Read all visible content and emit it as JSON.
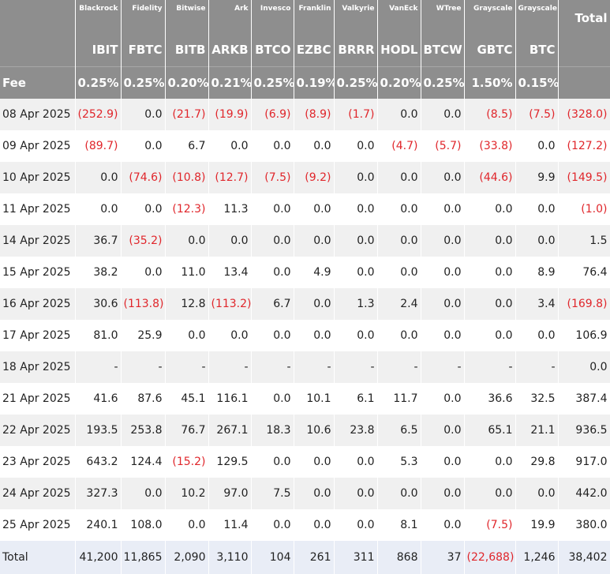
{
  "header": {
    "issuers": [
      "Blackrock",
      "Fidelity",
      "Bitwise",
      "Ark",
      "Invesco",
      "Franklin",
      "Valkyrie",
      "VanEck",
      "WTree",
      "Grayscale",
      "Grayscale"
    ],
    "total_label": "Total",
    "tickers": [
      "IBIT",
      "FBTC",
      "BITB",
      "ARKB",
      "BTCO",
      "EZBC",
      "BRRR",
      "HODL",
      "BTCW",
      "GBTC",
      "BTC"
    ]
  },
  "fee": {
    "label": "Fee",
    "values": [
      "0.25%",
      "0.25%",
      "0.20%",
      "0.21%",
      "0.25%",
      "0.19%",
      "0.25%",
      "0.20%",
      "0.25%",
      "1.50%",
      "0.15%"
    ]
  },
  "rows": [
    {
      "label": "08 Apr 2025",
      "values": [
        "(252.9)",
        "0.0",
        "(21.7)",
        "(19.9)",
        "(6.9)",
        "(8.9)",
        "(1.7)",
        "0.0",
        "0.0",
        "(8.5)",
        "(7.5)",
        "(328.0)"
      ]
    },
    {
      "label": "09 Apr 2025",
      "values": [
        "(89.7)",
        "0.0",
        "6.7",
        "0.0",
        "0.0",
        "0.0",
        "0.0",
        "(4.7)",
        "(5.7)",
        "(33.8)",
        "0.0",
        "(127.2)"
      ]
    },
    {
      "label": "10 Apr 2025",
      "values": [
        "0.0",
        "(74.6)",
        "(10.8)",
        "(12.7)",
        "(7.5)",
        "(9.2)",
        "0.0",
        "0.0",
        "0.0",
        "(44.6)",
        "9.9",
        "(149.5)"
      ]
    },
    {
      "label": "11 Apr 2025",
      "values": [
        "0.0",
        "0.0",
        "(12.3)",
        "11.3",
        "0.0",
        "0.0",
        "0.0",
        "0.0",
        "0.0",
        "0.0",
        "0.0",
        "(1.0)"
      ]
    },
    {
      "label": "14 Apr 2025",
      "values": [
        "36.7",
        "(35.2)",
        "0.0",
        "0.0",
        "0.0",
        "0.0",
        "0.0",
        "0.0",
        "0.0",
        "0.0",
        "0.0",
        "1.5"
      ]
    },
    {
      "label": "15 Apr 2025",
      "values": [
        "38.2",
        "0.0",
        "11.0",
        "13.4",
        "0.0",
        "4.9",
        "0.0",
        "0.0",
        "0.0",
        "0.0",
        "8.9",
        "76.4"
      ]
    },
    {
      "label": "16 Apr 2025",
      "values": [
        "30.6",
        "(113.8)",
        "12.8",
        "(113.2)",
        "6.7",
        "0.0",
        "1.3",
        "2.4",
        "0.0",
        "0.0",
        "3.4",
        "(169.8)"
      ]
    },
    {
      "label": "17 Apr 2025",
      "values": [
        "81.0",
        "25.9",
        "0.0",
        "0.0",
        "0.0",
        "0.0",
        "0.0",
        "0.0",
        "0.0",
        "0.0",
        "0.0",
        "106.9"
      ]
    },
    {
      "label": "18 Apr 2025",
      "values": [
        "-",
        "-",
        "-",
        "-",
        "-",
        "-",
        "-",
        "-",
        "-",
        "-",
        "-",
        "0.0"
      ]
    },
    {
      "label": "21 Apr 2025",
      "values": [
        "41.6",
        "87.6",
        "45.1",
        "116.1",
        "0.0",
        "10.1",
        "6.1",
        "11.7",
        "0.0",
        "36.6",
        "32.5",
        "387.4"
      ]
    },
    {
      "label": "22 Apr 2025",
      "values": [
        "193.5",
        "253.8",
        "76.7",
        "267.1",
        "18.3",
        "10.6",
        "23.8",
        "6.5",
        "0.0",
        "65.1",
        "21.1",
        "936.5"
      ]
    },
    {
      "label": "23 Apr 2025",
      "values": [
        "643.2",
        "124.4",
        "(15.2)",
        "129.5",
        "0.0",
        "0.0",
        "0.0",
        "5.3",
        "0.0",
        "0.0",
        "29.8",
        "917.0"
      ]
    },
    {
      "label": "24 Apr 2025",
      "values": [
        "327.3",
        "0.0",
        "10.2",
        "97.0",
        "7.5",
        "0.0",
        "0.0",
        "0.0",
        "0.0",
        "0.0",
        "0.0",
        "442.0"
      ]
    },
    {
      "label": "25 Apr 2025",
      "values": [
        "240.1",
        "108.0",
        "0.0",
        "11.4",
        "0.0",
        "0.0",
        "0.0",
        "8.1",
        "0.0",
        "(7.5)",
        "19.9",
        "380.0"
      ]
    }
  ],
  "totals": {
    "label": "Total",
    "values": [
      "41,200",
      "11,865",
      "2,090",
      "3,110",
      "104",
      "261",
      "311",
      "868",
      "37",
      "(22,688)",
      "1,246",
      "38,402"
    ]
  }
}
